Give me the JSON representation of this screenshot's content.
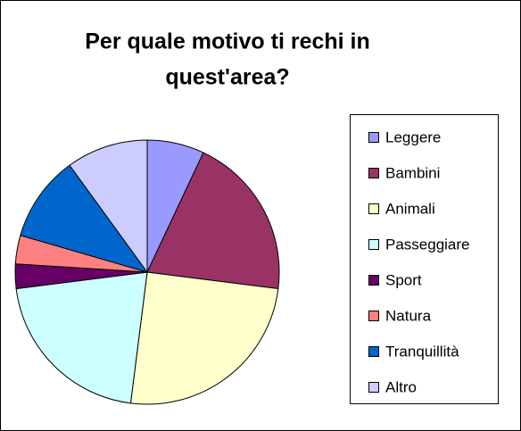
{
  "chart_data": {
    "type": "pie",
    "title_lines": [
      "Per quale motivo ti rechi in",
      "quest'area?"
    ],
    "categories": [
      "Leggere",
      "Bambini",
      "Animali",
      "Passeggiare",
      "Sport",
      "Natura",
      "Tranquillità",
      "Altro"
    ],
    "values": [
      7,
      20,
      25,
      21,
      3,
      3.5,
      10.5,
      10
    ],
    "colors": [
      "#9999ff",
      "#993366",
      "#ffffcc",
      "#ccffff",
      "#660066",
      "#ff8080",
      "#0066cc",
      "#ccccff"
    ],
    "legend": "right"
  }
}
